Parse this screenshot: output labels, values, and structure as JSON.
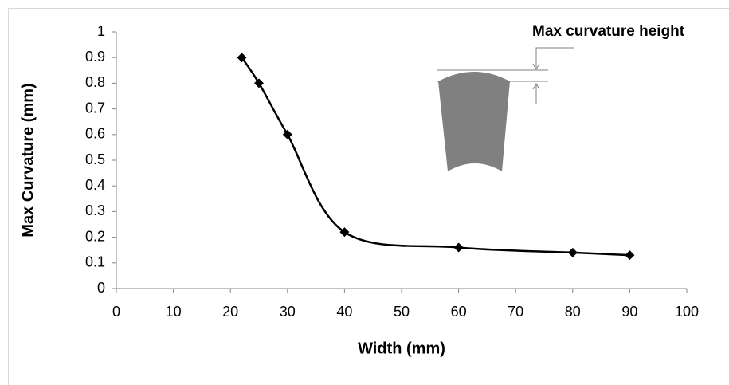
{
  "chart_data": {
    "type": "line",
    "x_label": "Width (mm)",
    "y_label": "Max Curvature (mm)",
    "annotation": "Max curvature height",
    "x": [
      22,
      25,
      30,
      40,
      60,
      80,
      90
    ],
    "values": [
      0.9,
      0.8,
      0.6,
      0.22,
      0.16,
      0.14,
      0.13
    ],
    "color": "#000000",
    "marker": "diamond",
    "smooth": true,
    "xlim": [
      0,
      100
    ],
    "xticks": [
      0,
      10,
      20,
      30,
      40,
      50,
      60,
      70,
      80,
      90,
      100
    ],
    "ylim": [
      0,
      1
    ],
    "yticks": [
      0,
      0.1,
      0.2,
      0.3,
      0.4,
      0.5,
      0.6,
      0.7,
      0.8,
      0.9,
      1
    ],
    "grid": false
  }
}
